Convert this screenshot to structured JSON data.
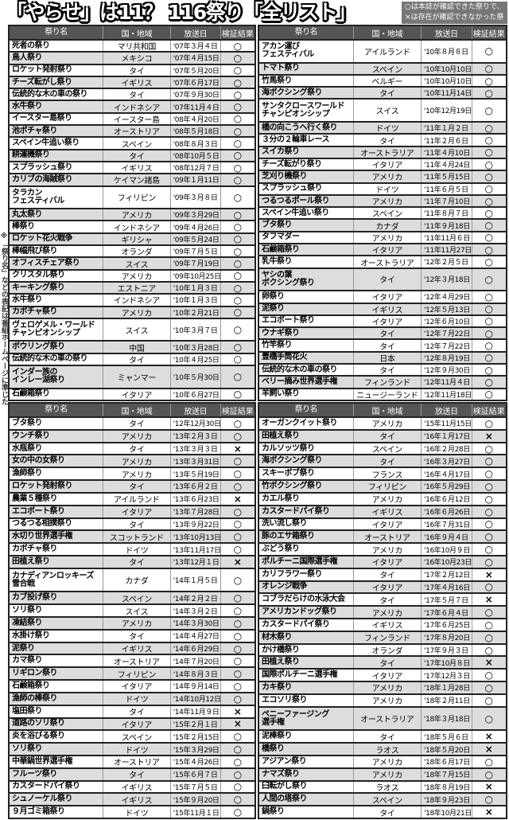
{
  "title": "「やらせ」は11？ 116祭り「全リスト」",
  "note": "○は本誌が確認できた祭りで、×は存在が確認できなかった祭り。",
  "side_note": "※「祭り名」などの表記は番組ホームページに準じた",
  "headers": [
    "祭り名",
    "国・地域",
    "放送日",
    "検証結果"
  ],
  "tables": [
    {
      "rows": [
        [
          "死者の祭り",
          "マリ共和国",
          "'07年３月４日",
          "○"
        ],
        [
          "鳥人祭り",
          "メキシコ",
          "'07年４月15日",
          "○"
        ],
        [
          "ロケット発射祭り",
          "タイ",
          "'07年５月20日",
          "○"
        ],
        [
          "チーズ転がし祭り",
          "イギリス",
          "'07年６月17日",
          "○"
        ],
        [
          "伝統的な木の車の祭り",
          "タイ",
          "'07年９月30日",
          "○"
        ],
        [
          "水牛祭り",
          "インドネシア",
          "'07年11月４日",
          "○"
        ],
        [
          "イースター島祭り",
          "イースター島",
          "'08年４月20日",
          "○"
        ],
        [
          "池ポチャ祭り",
          "オーストリア",
          "'08年５月18日",
          "○"
        ],
        [
          "スペイン牛追い祭り",
          "スペイン",
          "'08年８月３日",
          "○"
        ],
        [
          "耕運機祭り",
          "タイ",
          "'08年10月５日",
          "○"
        ],
        [
          "スプラッシュ祭り",
          "イギリス",
          "'08年12月７日",
          "○"
        ],
        [
          "カリブの海賊祭り",
          "ケイマン諸島",
          "'09年１月11日",
          "○"
        ],
        [
          "タラカン\nフェスティバル",
          "フィリピン",
          "'09年３月８日",
          "○"
        ],
        [
          "丸太祭り",
          "アメリカ",
          "'09年３月29日",
          "○"
        ],
        [
          "棒祭り",
          "インドネシア",
          "'09年４月26日",
          "○"
        ],
        [
          "ロケット花火戦争",
          "ギリシャ",
          "'09年５月24日",
          "○"
        ],
        [
          "棒幅飛び祭り",
          "オランダ",
          "'09年７月５日",
          "○"
        ],
        [
          "オフィスチェア祭り",
          "スイス",
          "'09年７月19日",
          "○"
        ],
        [
          "クリスタル祭り",
          "アメリカ",
          "'09年10月25日",
          "○"
        ],
        [
          "キーキング祭り",
          "エストニア",
          "'10年１月３日",
          "○"
        ],
        [
          "水牛祭り",
          "インドネシア",
          "'10年１月３日",
          "○"
        ],
        [
          "カボチャ祭り",
          "アメリカ",
          "'10年２月21日",
          "○"
        ],
        [
          "ヴェロゲメル・ワールド\nチャンピオンシップ",
          "スイス",
          "'10年３月７日",
          "○"
        ],
        [
          "ボウリング祭り",
          "中国",
          "'10年３月28日",
          "○"
        ],
        [
          "伝統的な木の車の祭り",
          "タイ",
          "'10年４月25日",
          "○"
        ],
        [
          "インダー族の\nインレー湖祭り",
          "ミャンマー",
          "'10年５月30日",
          "○"
        ],
        [
          "石鹸箱祭り",
          "イタリア",
          "'10年６月27日",
          "○"
        ]
      ]
    },
    {
      "rows": [
        [
          "アカン運び\nフェスティバル",
          "アイルランド",
          "'10年８月８日",
          "○"
        ],
        [
          "トマト祭り",
          "スペイン",
          "'10年10月10日",
          "○"
        ],
        [
          "竹馬祭り",
          "ベルギー",
          "'10年10月10日",
          "○"
        ],
        [
          "海ボクシング祭り",
          "タイ",
          "'10年11月14日",
          "○"
        ],
        [
          "サンタクロースワールド\nチャンピオンシップ",
          "スイス",
          "'10年12月19日",
          "○"
        ],
        [
          "橋の向こうへ行く祭り",
          "ドイツ",
          "'11年１月２日",
          "○"
        ],
        [
          "３分の２輪車レース",
          "タイ",
          "'11年２月６日",
          "○"
        ],
        [
          "スイカ祭り",
          "オーストラリア",
          "'11年４月10日",
          "○"
        ],
        [
          "チーズ転がり祭り",
          "イタリア",
          "'11年４月24日",
          "○"
        ],
        [
          "芝刈り機祭り",
          "アメリカ",
          "'11年５月15日",
          "○"
        ],
        [
          "スプラッシュ祭り",
          "ドイツ",
          "'11年６月５日",
          "○"
        ],
        [
          "つるつるポール祭り",
          "アメリカ",
          "'11年７月10日",
          "○"
        ],
        [
          "スペイン牛追い祭り",
          "スペイン",
          "'11年８月７日",
          "○"
        ],
        [
          "ブタ祭り",
          "カナダ",
          "'11年９月18日",
          "○"
        ],
        [
          "タフマダー",
          "アメリカ",
          "'11年11月６日",
          "○"
        ],
        [
          "石鹸箱祭り",
          "イタリア",
          "'11年11月27日",
          "○"
        ],
        [
          "乳牛祭り",
          "オーストラリア",
          "'12年２月５日",
          "○"
        ],
        [
          "ヤシの葉\nボクシング祭り",
          "タイ",
          "'12年３月18日",
          "○"
        ],
        [
          "卵祭り",
          "イタリア",
          "'12年４月29日",
          "○"
        ],
        [
          "泥祭り",
          "イギリス",
          "'12年５月13日",
          "○"
        ],
        [
          "エコボート祭り",
          "イタリア",
          "'12年６月10日",
          "○"
        ],
        [
          "ウナギ祭り",
          "タイ",
          "'12年７月22日",
          "○"
        ],
        [
          "竹竿祭り",
          "タイ",
          "'12年７月22日",
          "○"
        ],
        [
          "豊橋手筒花火",
          "日本",
          "'12年８月19日",
          "○"
        ],
        [
          "伝統的な木の車の祭り",
          "タイ",
          "'12年９月30日",
          "○"
        ],
        [
          "ベリー摘み世界選手権",
          "フィンランド",
          "'12年11月４日",
          "○"
        ],
        [
          "羊飼い祭り",
          "ニュージーランド",
          "'12年11月18日",
          "○"
        ]
      ]
    },
    {
      "rows": [
        [
          "ブタ祭り",
          "タイ",
          "'12年12月30日",
          "○"
        ],
        [
          "ウンチ祭り",
          "アメリカ",
          "'13年２月３日",
          "○"
        ],
        [
          "水瓶祭り",
          "タイ",
          "'13年３月３日",
          "×"
        ],
        [
          "女の中の女祭り",
          "アメリカ",
          "'13年３月31日",
          "○"
        ],
        [
          "漁師祭り",
          "アメリカ",
          "'13年５月19日",
          "○"
        ],
        [
          "ロケット発射祭り",
          "タイ",
          "'13年６月２日",
          "○"
        ],
        [
          "農業５種祭り",
          "アイルランド",
          "'13年６月23日",
          "×"
        ],
        [
          "エコボート祭り",
          "イタリア",
          "'13年７月28日",
          "○"
        ],
        [
          "つるつる相撲祭り",
          "タイ",
          "'13年９月22日",
          "○"
        ],
        [
          "水切り世界選手権",
          "スコットランド",
          "'13年10月13日",
          "○"
        ],
        [
          "カボチャ祭り",
          "ドイツ",
          "'13年11月17日",
          "○"
        ],
        [
          "田植え祭り",
          "タイ",
          "'13年12月１日",
          "×"
        ],
        [
          "カナディアンロッキーズ\n雪合戦",
          "カナダ",
          "'14年１月５日",
          "○"
        ],
        [
          "カブ投げ祭り",
          "スペイン",
          "'14年２月２日",
          "○"
        ],
        [
          "ソリ祭り",
          "スイス",
          "'14年３月２日",
          "○"
        ],
        [
          "凍結祭り",
          "アメリカ",
          "'14年３月30日",
          "○"
        ],
        [
          "水掛け祭り",
          "タイ",
          "'14年４月27日",
          "○"
        ],
        [
          "泥祭り",
          "イギリス",
          "'14年６月29日",
          "○"
        ],
        [
          "カマ祭り",
          "オーストリア",
          "'14年７月20日",
          "○"
        ],
        [
          "リギロン祭り",
          "フィリピン",
          "'14年８月３日",
          "○"
        ],
        [
          "石鹸箱祭り",
          "イタリア",
          "'14年９月14日",
          "○"
        ],
        [
          "漁師の棒祭り",
          "ドイツ",
          "'14年10月12日",
          "○"
        ],
        [
          "塩田祭り",
          "タイ",
          "'14年11月９日",
          "×"
        ],
        [
          "道路のソリ祭り",
          "イタリア",
          "'15年２月１日",
          "×"
        ],
        [
          "炎を浴びる祭り",
          "スペイン",
          "'15年２月15日",
          "○"
        ],
        [
          "ソリ祭り",
          "ドイツ",
          "'15年３月29日",
          "○"
        ],
        [
          "中華鍋世界選手権",
          "オーストリア",
          "'15年４月26日",
          "○"
        ],
        [
          "フルーツ祭り",
          "タイ",
          "'15年６月７日",
          "○"
        ],
        [
          "カスタードパイ祭り",
          "イギリス",
          "'15年７月５日",
          "○"
        ],
        [
          "シュノーケル祭り",
          "イギリス",
          "'15年９月20日",
          "○"
        ],
        [
          "９月ゴミ箱祭り",
          "ドイツ",
          "'15年11月１日",
          "○"
        ]
      ]
    },
    {
      "rows": [
        [
          "オーガンクイット祭り",
          "アメリカ",
          "'15年11月15日",
          "○"
        ],
        [
          "田植え祭り",
          "タイ",
          "'16年１月17日",
          "×"
        ],
        [
          "カルソッツ祭り",
          "スペイン",
          "'16年２月28日",
          "○"
        ],
        [
          "海ボクシング祭り",
          "タイ",
          "'16年３月27日",
          "○"
        ],
        [
          "スキーボブ祭り",
          "フランス",
          "'16年４月17日",
          "○"
        ],
        [
          "竹ボクシング祭り",
          "フィリピン",
          "'16年５月29日",
          "○"
        ],
        [
          "カエル祭り",
          "アメリカ",
          "'16年６月12日",
          "○"
        ],
        [
          "カスタードパイ祭り",
          "イギリス",
          "'16年６月26日",
          "○"
        ],
        [
          "洗い流し祭り",
          "イタリア",
          "'16年７月31日",
          "○"
        ],
        [
          "豚のエサ箱祭り",
          "オーストリア",
          "'16年９月４日",
          "○"
        ],
        [
          "ぶどう祭り",
          "アメリカ",
          "'16年10月９日",
          "○"
        ],
        [
          "ポルチーニ国際選手権",
          "イタリア",
          "'16年10月23日",
          "○"
        ],
        [
          "カリフラワー祭り",
          "タイ",
          "'17年２月12日",
          "×"
        ],
        [
          "オレンジ戦争",
          "イタリア",
          "'17年４月16日",
          "○"
        ],
        [
          "コブラだらけの水泳大会",
          "タイ",
          "'17年５月７日",
          "×"
        ],
        [
          "アメリカンドッグ祭り",
          "アメリカ",
          "'17年６月４日",
          "○"
        ],
        [
          "カスタードパイ祭り",
          "イギリス",
          "'17年６月25日",
          "○"
        ],
        [
          "材木祭り",
          "フィンランド",
          "'17年８月20日",
          "○"
        ],
        [
          "かけ橋祭り",
          "オランダ",
          "'17年９月３日",
          "○"
        ],
        [
          "田植え祭り",
          "タイ",
          "'17年10月８日",
          "×"
        ],
        [
          "国際ポルチーニ選手権",
          "イタリア",
          "'17年12月３日",
          "○"
        ],
        [
          "カキ祭り",
          "アメリカ",
          "'18年１月28日",
          "○"
        ],
        [
          "エコソリ祭り",
          "アメリカ",
          "'18年２月11日",
          "○"
        ],
        [
          "ペニーファージング\n選手権",
          "オーストラリア",
          "'18年３月18日",
          "○"
        ],
        [
          "泥棒祭り",
          "タイ",
          "'18年５月６日",
          "×"
        ],
        [
          "橋祭り",
          "ラオス",
          "'18年５月20日",
          "×"
        ],
        [
          "アジアン祭り",
          "アメリカ",
          "'18年６月17日",
          "○"
        ],
        [
          "ナマズ祭り",
          "アメリカ",
          "'18年７月15日",
          "○"
        ],
        [
          "臼転がし祭り",
          "ラオス",
          "'18年８月19日",
          "×"
        ],
        [
          "人間の塔祭り",
          "スペイン",
          "'18年９月23日",
          "○"
        ],
        [
          "鍋祭り",
          "タイ",
          "'18年10月21日",
          "×"
        ]
      ]
    }
  ]
}
